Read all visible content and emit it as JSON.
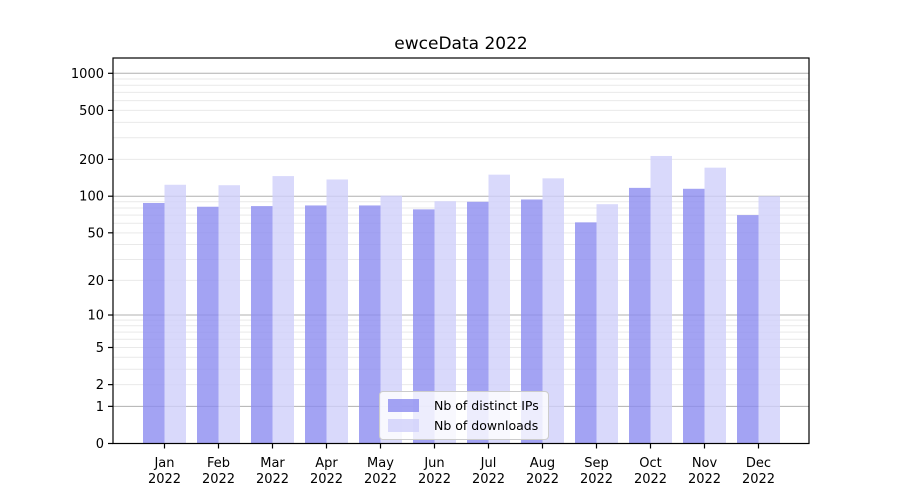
{
  "chart_data": {
    "type": "bar",
    "title": "ewceData 2022",
    "xlabel": "",
    "ylabel": "",
    "year_label": "2022",
    "categories": [
      "Jan",
      "Feb",
      "Mar",
      "Apr",
      "May",
      "Jun",
      "Jul",
      "Aug",
      "Sep",
      "Oct",
      "Nov",
      "Dec"
    ],
    "series": [
      {
        "name": "Nb of distinct IPs",
        "color": "#8c8cf0",
        "values": [
          88,
          82,
          83,
          84,
          84,
          78,
          90,
          94,
          61,
          117,
          115,
          70
        ]
      },
      {
        "name": "Nb of downloads",
        "color": "#cfcffa",
        "values": [
          124,
          123,
          146,
          137,
          101,
          91,
          150,
          140,
          86,
          213,
          171,
          100
        ]
      }
    ],
    "yscale": "log10(value+1)",
    "y_tick_labels": [
      0,
      1,
      2,
      5,
      10,
      20,
      50,
      100,
      200,
      500,
      1000
    ],
    "ylim": [
      0,
      1200
    ],
    "grid": "horizontal-log-minor",
    "legend_position": "bottom-center",
    "colors": {
      "bar_distinct_ips": "#8c8cf0",
      "bar_downloads": "#cfcffa",
      "grid_major": "#b0b0b0",
      "grid_minor": "#e9e9e9",
      "axis": "#000000"
    }
  }
}
